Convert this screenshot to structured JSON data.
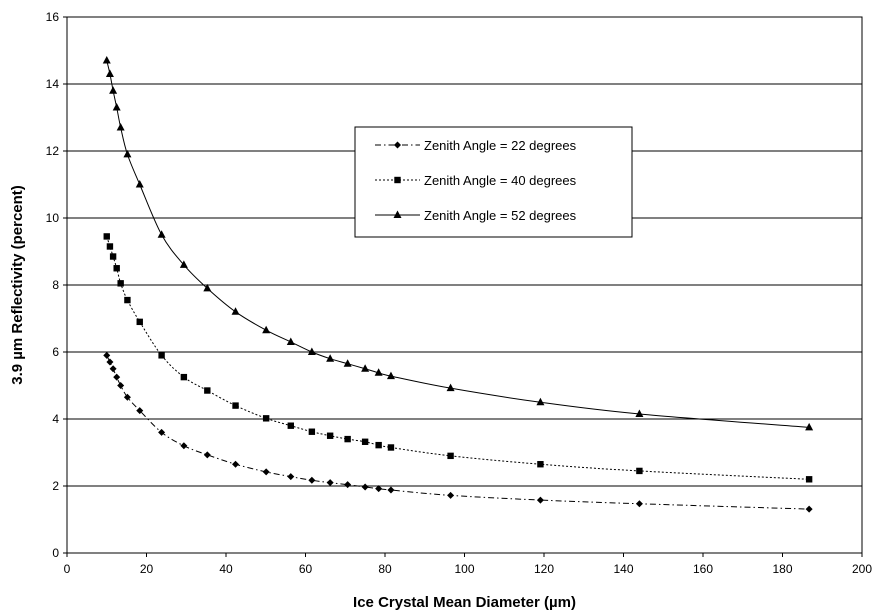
{
  "chart_data": {
    "type": "line",
    "title": "",
    "xlabel": "Ice Crystal Mean Diameter (µm)",
    "ylabel": "3.9 µm Reflectivity (percent)",
    "xlim": [
      0,
      200
    ],
    "ylim": [
      0,
      16
    ],
    "x_ticks": [
      0,
      20,
      40,
      60,
      80,
      100,
      120,
      140,
      160,
      180,
      200
    ],
    "y_ticks": [
      0,
      2,
      4,
      6,
      8,
      10,
      12,
      14,
      16
    ],
    "grid": "horizontal",
    "legend_position": "center-right",
    "series": [
      {
        "name": "Zenith Angle = 22 degrees",
        "marker": "diamond",
        "line_style": "dash-dot",
        "color": "#000000",
        "points": [
          [
            10,
            5.9
          ],
          [
            10.8,
            5.7
          ],
          [
            11.6,
            5.5
          ],
          [
            12.5,
            5.25
          ],
          [
            13.5,
            5.0
          ],
          [
            15.2,
            4.65
          ],
          [
            18.3,
            4.25
          ],
          [
            23.8,
            3.6
          ],
          [
            29.4,
            3.2
          ],
          [
            35.3,
            2.93
          ],
          [
            42.4,
            2.65
          ],
          [
            50.1,
            2.42
          ],
          [
            56.3,
            2.28
          ],
          [
            61.6,
            2.17
          ],
          [
            66.2,
            2.1
          ],
          [
            70.6,
            2.04
          ],
          [
            75,
            1.97
          ],
          [
            78.4,
            1.92
          ],
          [
            81.5,
            1.88
          ],
          [
            96.5,
            1.72
          ],
          [
            119.1,
            1.58
          ],
          [
            144,
            1.47
          ],
          [
            186.7,
            1.31
          ]
        ]
      },
      {
        "name": "Zenith Angle = 40 degrees",
        "marker": "square",
        "line_style": "dotted",
        "color": "#000000",
        "points": [
          [
            10,
            9.45
          ],
          [
            10.8,
            9.15
          ],
          [
            11.6,
            8.85
          ],
          [
            12.5,
            8.5
          ],
          [
            13.5,
            8.05
          ],
          [
            15.2,
            7.55
          ],
          [
            18.3,
            6.9
          ],
          [
            23.8,
            5.9
          ],
          [
            29.4,
            5.25
          ],
          [
            35.3,
            4.85
          ],
          [
            42.4,
            4.4
          ],
          [
            50.1,
            4.02
          ],
          [
            56.3,
            3.8
          ],
          [
            61.6,
            3.62
          ],
          [
            66.2,
            3.5
          ],
          [
            70.6,
            3.4
          ],
          [
            75,
            3.32
          ],
          [
            78.4,
            3.22
          ],
          [
            81.5,
            3.15
          ],
          [
            96.5,
            2.9
          ],
          [
            119.1,
            2.65
          ],
          [
            144,
            2.45
          ],
          [
            186.7,
            2.2
          ]
        ]
      },
      {
        "name": "Zenith Angle = 52 degrees",
        "marker": "triangle",
        "line_style": "solid",
        "color": "#000000",
        "points": [
          [
            10,
            14.7
          ],
          [
            10.8,
            14.3
          ],
          [
            11.6,
            13.8
          ],
          [
            12.5,
            13.3
          ],
          [
            13.5,
            12.7
          ],
          [
            15.2,
            11.9
          ],
          [
            18.3,
            11.0
          ],
          [
            23.8,
            9.5
          ],
          [
            29.4,
            8.6
          ],
          [
            35.3,
            7.9
          ],
          [
            42.4,
            7.2
          ],
          [
            50.1,
            6.65
          ],
          [
            56.3,
            6.3
          ],
          [
            61.6,
            6.0
          ],
          [
            66.2,
            5.8
          ],
          [
            70.6,
            5.65
          ],
          [
            75,
            5.5
          ],
          [
            78.4,
            5.38
          ],
          [
            81.5,
            5.28
          ],
          [
            96.5,
            4.92
          ],
          [
            119.1,
            4.5
          ],
          [
            144,
            4.15
          ],
          [
            186.7,
            3.75
          ]
        ]
      }
    ]
  }
}
